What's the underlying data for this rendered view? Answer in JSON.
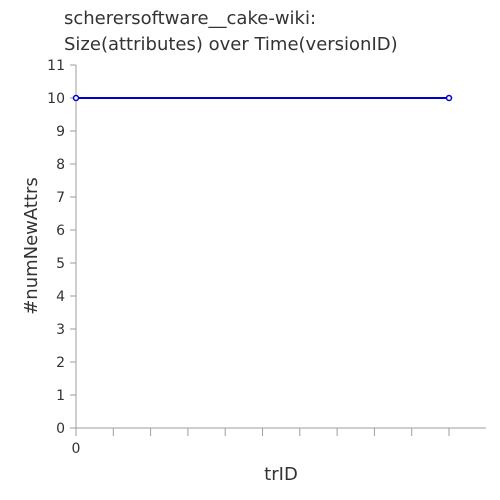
{
  "chart_data": {
    "type": "line",
    "title_line1": "scherersoftware__cake-wiki:",
    "title_line2": "Size(attributes) over Time(versionID)",
    "xlabel": "trID",
    "ylabel": "#numNewAttrs",
    "ylim": [
      0,
      11
    ],
    "yticks": [
      "0",
      "1",
      "2",
      "3",
      "4",
      "5",
      "6",
      "7",
      "8",
      "9",
      "10",
      "11"
    ],
    "xticks": [
      "0"
    ],
    "series": [
      {
        "x": [
          0,
          1
        ],
        "values": [
          10,
          10
        ]
      }
    ],
    "colors": {
      "line": "#0000cc",
      "axis": "#9e9e9e",
      "text": "#333333"
    },
    "grid": false
  }
}
